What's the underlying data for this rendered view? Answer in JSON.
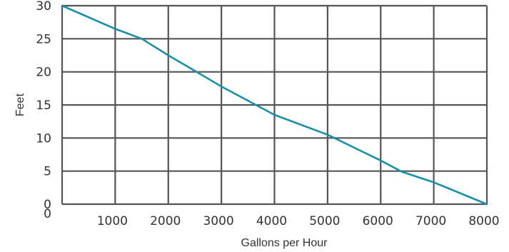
{
  "chart_data": {
    "type": "line",
    "xlabel": "Gallons per Hour",
    "ylabel": "Feet",
    "xlim": [
      0,
      8000
    ],
    "ylim": [
      0,
      30
    ],
    "x_ticks": [
      1000,
      2000,
      3000,
      4000,
      5000,
      6000,
      7000,
      8000
    ],
    "x_tick_labels": [
      "1000",
      "2000",
      "3000",
      "4000",
      "5000",
      "6000",
      "7000",
      "8000"
    ],
    "y_ticks": [
      0,
      5,
      10,
      15,
      20,
      25,
      30
    ],
    "y_tick_labels": [
      "0",
      "5",
      "10",
      "15",
      "20",
      "25",
      "30"
    ],
    "origin_x_label": "0",
    "grid": true,
    "series": [
      {
        "color": "#1b8fa6",
        "points": [
          {
            "x": 0,
            "y": 30
          },
          {
            "x": 1000,
            "y": 26.5
          },
          {
            "x": 1500,
            "y": 25
          },
          {
            "x": 2000,
            "y": 22.5
          },
          {
            "x": 3000,
            "y": 17.8
          },
          {
            "x": 4000,
            "y": 13.5
          },
          {
            "x": 5000,
            "y": 10.5
          },
          {
            "x": 6000,
            "y": 6.6
          },
          {
            "x": 6400,
            "y": 4.9
          },
          {
            "x": 7000,
            "y": 3.3
          },
          {
            "x": 8000,
            "y": 0
          }
        ]
      }
    ]
  }
}
